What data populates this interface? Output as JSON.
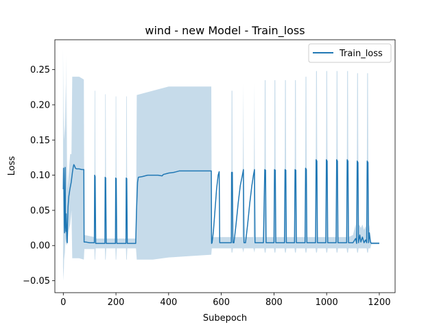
{
  "chart_data": {
    "type": "line",
    "title": "wind - new Model - Train_loss",
    "xlabel": "Subepoch",
    "ylabel": "Loss",
    "xlim": [
      -32,
      1260
    ],
    "ylim": [
      -0.067,
      0.2925
    ],
    "xticks": [
      0,
      200,
      400,
      600,
      800,
      1000,
      1200
    ],
    "yticks": [
      -0.05,
      0.0,
      0.05,
      0.1,
      0.15,
      0.2,
      0.25
    ],
    "ytick_labels": [
      "−0.05",
      "0.00",
      "0.05",
      "0.10",
      "0.15",
      "0.20",
      "0.25"
    ],
    "grid": false,
    "legend_position": "top-right",
    "colors": {
      "line": "#1f77b4",
      "band": "#c6dbea"
    },
    "series": [
      {
        "name": "Train_loss",
        "points": [
          [
            0,
            0.08
          ],
          [
            1,
            0.11
          ],
          [
            2,
            0.09
          ],
          [
            3,
            0.06
          ],
          [
            4,
            0.03
          ],
          [
            5,
            0.018
          ],
          [
            6,
            0.04
          ],
          [
            7,
            0.111
          ],
          [
            8,
            0.05
          ],
          [
            9,
            0.028
          ],
          [
            10,
            0.02
          ],
          [
            11,
            0.045
          ],
          [
            12,
            0.03
          ],
          [
            13,
            0.015
          ],
          [
            14,
            0.006
          ],
          [
            15,
            0.004
          ],
          [
            16,
            0.03
          ],
          [
            18,
            0.055
          ],
          [
            21,
            0.07
          ],
          [
            25,
            0.08
          ],
          [
            30,
            0.09
          ],
          [
            35,
            0.105
          ],
          [
            38,
            0.112
          ],
          [
            40,
            0.115
          ],
          [
            43,
            0.113
          ],
          [
            46,
            0.11
          ],
          [
            50,
            0.109
          ],
          [
            60,
            0.109
          ],
          [
            70,
            0.108
          ],
          [
            78,
            0.108
          ],
          [
            79,
            0.005
          ],
          [
            85,
            0.005
          ],
          [
            100,
            0.004
          ],
          [
            118,
            0.004
          ],
          [
            119,
            0.1
          ],
          [
            121,
            0.098
          ],
          [
            123,
            0.003
          ],
          [
            140,
            0.003
          ],
          [
            158,
            0.003
          ],
          [
            159,
            0.097
          ],
          [
            161,
            0.096
          ],
          [
            163,
            0.003
          ],
          [
            180,
            0.003
          ],
          [
            198,
            0.003
          ],
          [
            199,
            0.096
          ],
          [
            201,
            0.095
          ],
          [
            203,
            0.003
          ],
          [
            220,
            0.003
          ],
          [
            238,
            0.003
          ],
          [
            239,
            0.096
          ],
          [
            241,
            0.095
          ],
          [
            243,
            0.003
          ],
          [
            260,
            0.003
          ],
          [
            275,
            0.003
          ],
          [
            278,
            0.05
          ],
          [
            282,
            0.09
          ],
          [
            285,
            0.097
          ],
          [
            300,
            0.098
          ],
          [
            320,
            0.1
          ],
          [
            340,
            0.1
          ],
          [
            360,
            0.1
          ],
          [
            375,
            0.099
          ],
          [
            380,
            0.101
          ],
          [
            400,
            0.103
          ],
          [
            420,
            0.104
          ],
          [
            440,
            0.106
          ],
          [
            480,
            0.106
          ],
          [
            520,
            0.106
          ],
          [
            562,
            0.106
          ],
          [
            563,
            0.003
          ],
          [
            565,
            0.004
          ],
          [
            570,
            0.02
          ],
          [
            576,
            0.05
          ],
          [
            582,
            0.08
          ],
          [
            588,
            0.1
          ],
          [
            592,
            0.105
          ],
          [
            594,
            0.004
          ],
          [
            600,
            0.004
          ],
          [
            620,
            0.004
          ],
          [
            638,
            0.004
          ],
          [
            639,
            0.104
          ],
          [
            642,
            0.104
          ],
          [
            644,
            0.004
          ],
          [
            648,
            0.004
          ],
          [
            656,
            0.03
          ],
          [
            664,
            0.06
          ],
          [
            672,
            0.085
          ],
          [
            680,
            0.1
          ],
          [
            684,
            0.108
          ],
          [
            686,
            0.004
          ],
          [
            692,
            0.004
          ],
          [
            700,
            0.03
          ],
          [
            708,
            0.06
          ],
          [
            716,
            0.085
          ],
          [
            722,
            0.1
          ],
          [
            726,
            0.108
          ],
          [
            728,
            0.004
          ],
          [
            740,
            0.004
          ],
          [
            760,
            0.004
          ],
          [
            765,
            0.108
          ],
          [
            768,
            0.107
          ],
          [
            770,
            0.004
          ],
          [
            780,
            0.004
          ],
          [
            800,
            0.004
          ],
          [
            802,
            0.108
          ],
          [
            805,
            0.107
          ],
          [
            807,
            0.004
          ],
          [
            820,
            0.004
          ],
          [
            840,
            0.004
          ],
          [
            842,
            0.108
          ],
          [
            845,
            0.107
          ],
          [
            847,
            0.004
          ],
          [
            860,
            0.004
          ],
          [
            878,
            0.004
          ],
          [
            880,
            0.108
          ],
          [
            883,
            0.107
          ],
          [
            885,
            0.004
          ],
          [
            900,
            0.004
          ],
          [
            918,
            0.004
          ],
          [
            920,
            0.11
          ],
          [
            923,
            0.108
          ],
          [
            925,
            0.004
          ],
          [
            940,
            0.004
          ],
          [
            958,
            0.004
          ],
          [
            960,
            0.122
          ],
          [
            963,
            0.12
          ],
          [
            965,
            0.004
          ],
          [
            980,
            0.004
          ],
          [
            997,
            0.004
          ],
          [
            999,
            0.122
          ],
          [
            1002,
            0.12
          ],
          [
            1004,
            0.004
          ],
          [
            1020,
            0.004
          ],
          [
            1036,
            0.004
          ],
          [
            1038,
            0.122
          ],
          [
            1041,
            0.12
          ],
          [
            1043,
            0.004
          ],
          [
            1060,
            0.004
          ],
          [
            1076,
            0.004
          ],
          [
            1078,
            0.122
          ],
          [
            1081,
            0.12
          ],
          [
            1083,
            0.004
          ],
          [
            1100,
            0.004
          ],
          [
            1110,
            0.01
          ],
          [
            1114,
            0.003
          ],
          [
            1116,
            0.12
          ],
          [
            1119,
            0.118
          ],
          [
            1121,
            0.004
          ],
          [
            1126,
            0.015
          ],
          [
            1130,
            0.005
          ],
          [
            1136,
            0.012
          ],
          [
            1142,
            0.004
          ],
          [
            1148,
            0.008
          ],
          [
            1152,
            0.004
          ],
          [
            1154,
            0.12
          ],
          [
            1157,
            0.118
          ],
          [
            1159,
            0.004
          ],
          [
            1162,
            0.018
          ],
          [
            1166,
            0.005
          ],
          [
            1170,
            0.003
          ],
          [
            1200,
            0.003
          ]
        ],
        "band": [
          [
            -1,
            -0.03,
            0.28
          ],
          [
            1,
            -0.05,
            0.19
          ],
          [
            3,
            -0.02,
            0.15
          ],
          [
            6,
            -0.01,
            0.17
          ],
          [
            8,
            0.01,
            0.23
          ],
          [
            10,
            0.0,
            0.16
          ],
          [
            12,
            0.005,
            0.27
          ],
          [
            14,
            0.0,
            0.12
          ],
          [
            16,
            0.005,
            0.08
          ],
          [
            20,
            0.02,
            0.1
          ],
          [
            26,
            0.03,
            0.13
          ],
          [
            31,
            0.05,
            0.13
          ],
          [
            34,
            -0.018,
            0.24
          ],
          [
            60,
            -0.018,
            0.24
          ],
          [
            78,
            -0.02,
            0.236
          ],
          [
            80,
            -0.005,
            0.015
          ],
          [
            118,
            -0.005,
            0.012
          ],
          [
            119,
            -0.02,
            0.22
          ],
          [
            121,
            -0.02,
            0.22
          ],
          [
            123,
            -0.004,
            0.01
          ],
          [
            158,
            -0.004,
            0.01
          ],
          [
            159,
            -0.02,
            0.215
          ],
          [
            161,
            -0.02,
            0.215
          ],
          [
            163,
            -0.004,
            0.01
          ],
          [
            198,
            -0.004,
            0.01
          ],
          [
            199,
            -0.02,
            0.212
          ],
          [
            201,
            -0.02,
            0.212
          ],
          [
            203,
            -0.004,
            0.01
          ],
          [
            238,
            -0.004,
            0.01
          ],
          [
            239,
            -0.02,
            0.212
          ],
          [
            241,
            -0.02,
            0.212
          ],
          [
            243,
            -0.004,
            0.01
          ],
          [
            276,
            -0.004,
            0.01
          ],
          [
            279,
            -0.02,
            0.214
          ],
          [
            340,
            -0.02,
            0.22
          ],
          [
            400,
            -0.017,
            0.226
          ],
          [
            480,
            -0.015,
            0.226
          ],
          [
            562,
            -0.013,
            0.226
          ],
          [
            564,
            -0.004,
            0.012
          ],
          [
            638,
            -0.004,
            0.012
          ],
          [
            639,
            -0.01,
            0.22
          ],
          [
            642,
            -0.01,
            0.22
          ],
          [
            644,
            -0.004,
            0.012
          ],
          [
            680,
            -0.004,
            0.012
          ],
          [
            684,
            -0.01,
            0.23
          ],
          [
            686,
            -0.004,
            0.012
          ],
          [
            722,
            -0.004,
            0.012
          ],
          [
            726,
            -0.01,
            0.232
          ],
          [
            728,
            -0.004,
            0.012
          ],
          [
            763,
            -0.004,
            0.012
          ],
          [
            765,
            -0.01,
            0.235
          ],
          [
            768,
            -0.01,
            0.235
          ],
          [
            770,
            -0.004,
            0.012
          ],
          [
            800,
            -0.004,
            0.012
          ],
          [
            802,
            -0.01,
            0.235
          ],
          [
            805,
            -0.01,
            0.235
          ],
          [
            807,
            -0.004,
            0.012
          ],
          [
            840,
            -0.004,
            0.012
          ],
          [
            842,
            -0.01,
            0.235
          ],
          [
            845,
            -0.01,
            0.235
          ],
          [
            847,
            -0.004,
            0.012
          ],
          [
            878,
            -0.004,
            0.012
          ],
          [
            880,
            -0.01,
            0.235
          ],
          [
            883,
            -0.01,
            0.235
          ],
          [
            885,
            -0.004,
            0.012
          ],
          [
            918,
            -0.004,
            0.012
          ],
          [
            920,
            -0.01,
            0.24
          ],
          [
            923,
            -0.01,
            0.24
          ],
          [
            925,
            -0.004,
            0.012
          ],
          [
            958,
            -0.004,
            0.012
          ],
          [
            960,
            -0.01,
            0.248
          ],
          [
            963,
            -0.01,
            0.248
          ],
          [
            965,
            -0.004,
            0.012
          ],
          [
            997,
            -0.004,
            0.012
          ],
          [
            999,
            -0.01,
            0.248
          ],
          [
            1002,
            -0.01,
            0.248
          ],
          [
            1004,
            -0.004,
            0.012
          ],
          [
            1036,
            -0.004,
            0.012
          ],
          [
            1038,
            -0.01,
            0.248
          ],
          [
            1041,
            -0.01,
            0.248
          ],
          [
            1043,
            -0.004,
            0.012
          ],
          [
            1076,
            -0.004,
            0.012
          ],
          [
            1078,
            -0.01,
            0.248
          ],
          [
            1081,
            -0.01,
            0.248
          ],
          [
            1083,
            -0.004,
            0.012
          ],
          [
            1100,
            -0.004,
            0.015
          ],
          [
            1110,
            -0.004,
            0.03
          ],
          [
            1114,
            -0.004,
            0.01
          ],
          [
            1116,
            -0.01,
            0.245
          ],
          [
            1119,
            -0.01,
            0.245
          ],
          [
            1121,
            -0.004,
            0.03
          ],
          [
            1126,
            -0.004,
            0.028
          ],
          [
            1130,
            -0.004,
            0.025
          ],
          [
            1136,
            -0.004,
            0.03
          ],
          [
            1142,
            -0.004,
            0.022
          ],
          [
            1148,
            -0.004,
            0.028
          ],
          [
            1152,
            -0.004,
            0.02
          ],
          [
            1154,
            -0.01,
            0.245
          ],
          [
            1157,
            -0.01,
            0.245
          ],
          [
            1159,
            -0.004,
            0.02
          ],
          [
            1162,
            -0.004,
            0.03
          ],
          [
            1166,
            -0.004,
            0.015
          ],
          [
            1170,
            0.002,
            0.005
          ],
          [
            1200,
            0.002,
            0.005
          ]
        ]
      }
    ]
  }
}
